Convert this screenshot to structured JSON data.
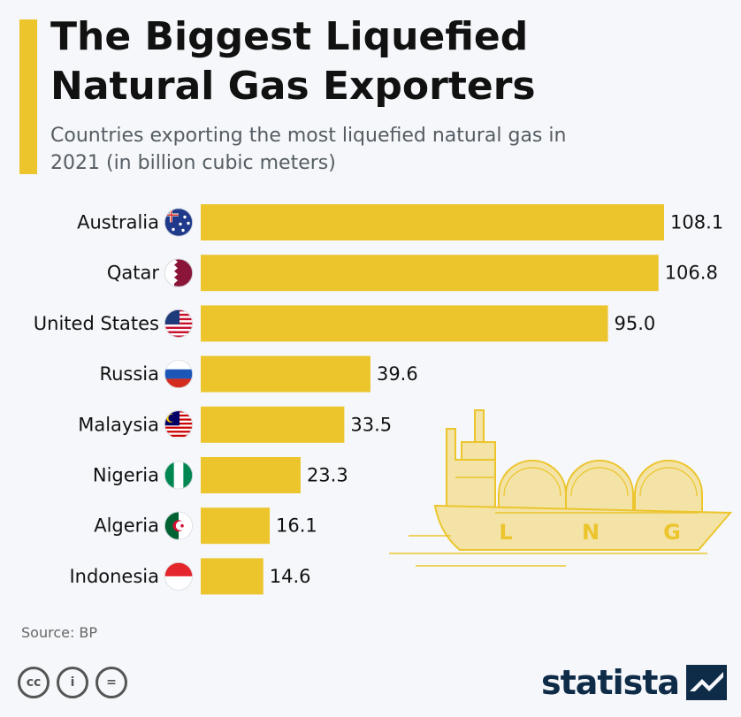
{
  "header": {
    "title": "The Biggest Liquefied Natural Gas Exporters",
    "subtitle": "Countries exporting the most liquefied natural gas in 2021 (in billion cubic meters)"
  },
  "colors": {
    "bar": "#ecc52d",
    "ship_fill": "#f3e3a6",
    "ship_stroke": "#ecc52d",
    "brand": "#0e2b48"
  },
  "chart_data": {
    "type": "bar",
    "orientation": "horizontal",
    "title": "The Biggest Liquefied Natural Gas Exporters",
    "subtitle": "Countries exporting the most liquefied natural gas in 2021 (in billion cubic meters)",
    "categories": [
      "Australia",
      "Qatar",
      "United States",
      "Russia",
      "Malaysia",
      "Nigeria",
      "Algeria",
      "Indonesia"
    ],
    "values": [
      108.1,
      106.8,
      95.0,
      39.6,
      33.5,
      23.3,
      16.1,
      14.6
    ],
    "value_labels": [
      "108.1",
      "106.8",
      "95.0",
      "39.6",
      "33.5",
      "23.3",
      "16.1",
      "14.6"
    ],
    "category_icons": [
      "australia-flag-icon",
      "qatar-flag-icon",
      "united-states-flag-icon",
      "russia-flag-icon",
      "malaysia-flag-icon",
      "nigeria-flag-icon",
      "algeria-flag-icon",
      "indonesia-flag-icon"
    ],
    "xlim": [
      0,
      108.1
    ],
    "grid": false,
    "legend": "none"
  },
  "illustration": {
    "name": "lng-tanker-ship",
    "letters": [
      "L",
      "N",
      "G"
    ]
  },
  "footer": {
    "source": "Source: BP",
    "license_icons": [
      "cc-icon",
      "by-icon",
      "nd-icon"
    ],
    "license_glyphs": [
      "cc",
      "i",
      "="
    ],
    "brand": "statista"
  }
}
